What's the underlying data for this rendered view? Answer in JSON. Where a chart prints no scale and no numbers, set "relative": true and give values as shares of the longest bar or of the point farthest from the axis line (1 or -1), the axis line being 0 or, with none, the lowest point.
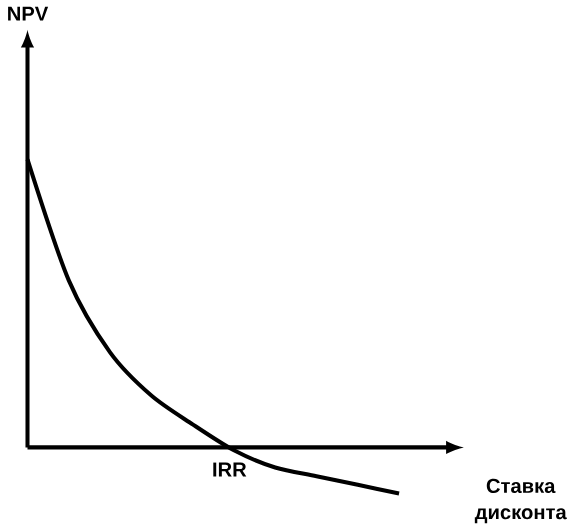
{
  "chart_data": {
    "type": "line",
    "relative": true,
    "xlabel": "Ставка дисконта",
    "categories": [
      null,
      null,
      null,
      null,
      null,
      null,
      null,
      null,
      null,
      null
    ],
    "values": [
      1,
      0.58,
      0.33,
      0.18,
      0.08,
      -0.01,
      -0.07,
      -0.1,
      -0.13,
      -0.16
    ],
    "color": "#000000",
    "annotations": [
      "NPV",
      "IRR"
    ]
  }
}
